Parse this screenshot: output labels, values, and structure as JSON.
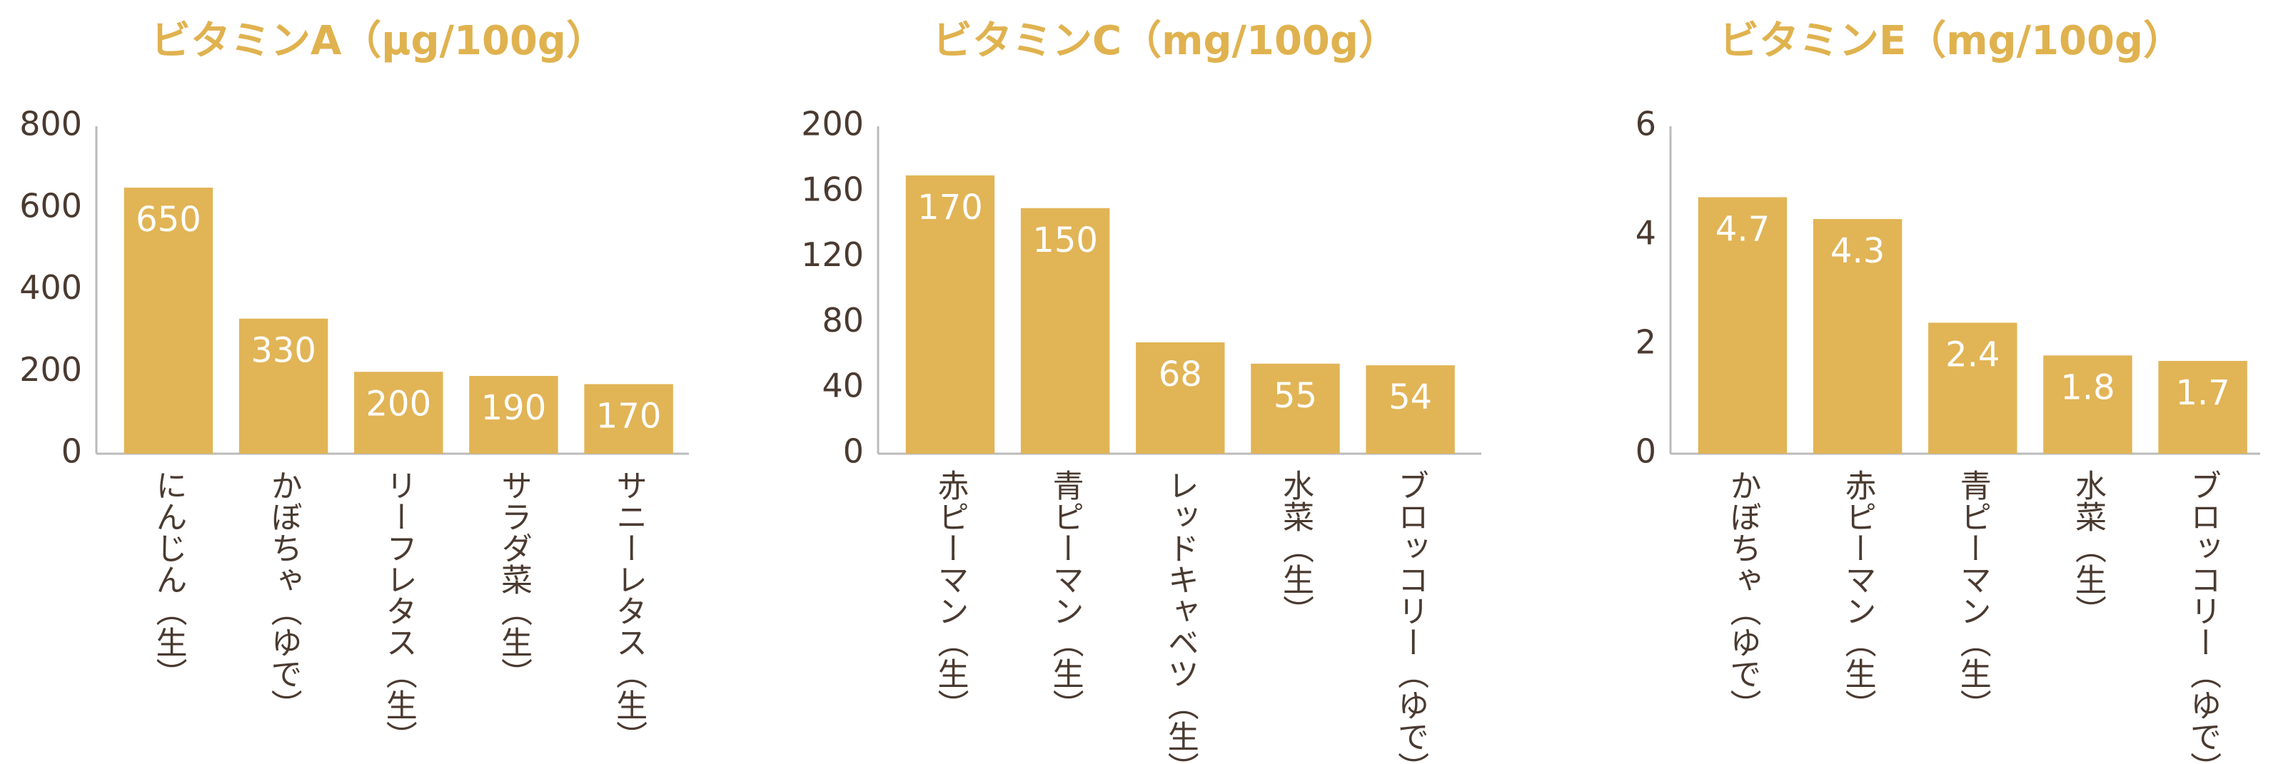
{
  "chart_data": [
    {
      "type": "bar",
      "title": "ビタミンA（μg/100g）",
      "categories": [
        "にんじん（生）",
        "かぼちゃ（ゆで）",
        "リーフレタス（生）",
        "サラダ菜（生）",
        "サニーレタス（生）"
      ],
      "values": [
        650,
        330,
        200,
        190,
        170
      ],
      "color": "#e1b456",
      "ylim": [
        0,
        800
      ],
      "yticks": [
        0,
        200,
        400,
        600,
        800
      ]
    },
    {
      "type": "bar",
      "title": "ビタミンC（mg/100g）",
      "categories": [
        "赤ピーマン（生）",
        "青ピーマン（生）",
        "レッドキャベツ（生）",
        "水菜（生）",
        "ブロッコリー（ゆで）"
      ],
      "values": [
        170,
        150,
        68,
        55,
        54
      ],
      "color": "#e1b456",
      "ylim": [
        0,
        200
      ],
      "yticks": [
        0,
        40,
        80,
        120,
        160,
        200
      ]
    },
    {
      "type": "bar",
      "title": "ビタミンE（mg/100g）",
      "categories": [
        "かぼちゃ（ゆで）",
        "赤ピーマン（生）",
        "青ピーマン（生）",
        "水菜（生）",
        "ブロッコリー（ゆで）"
      ],
      "values": [
        4.7,
        4.3,
        2.4,
        1.8,
        1.7
      ],
      "color": "#e1b456",
      "ylim": [
        0,
        6
      ],
      "yticks": [
        0,
        2,
        4,
        6
      ]
    }
  ]
}
